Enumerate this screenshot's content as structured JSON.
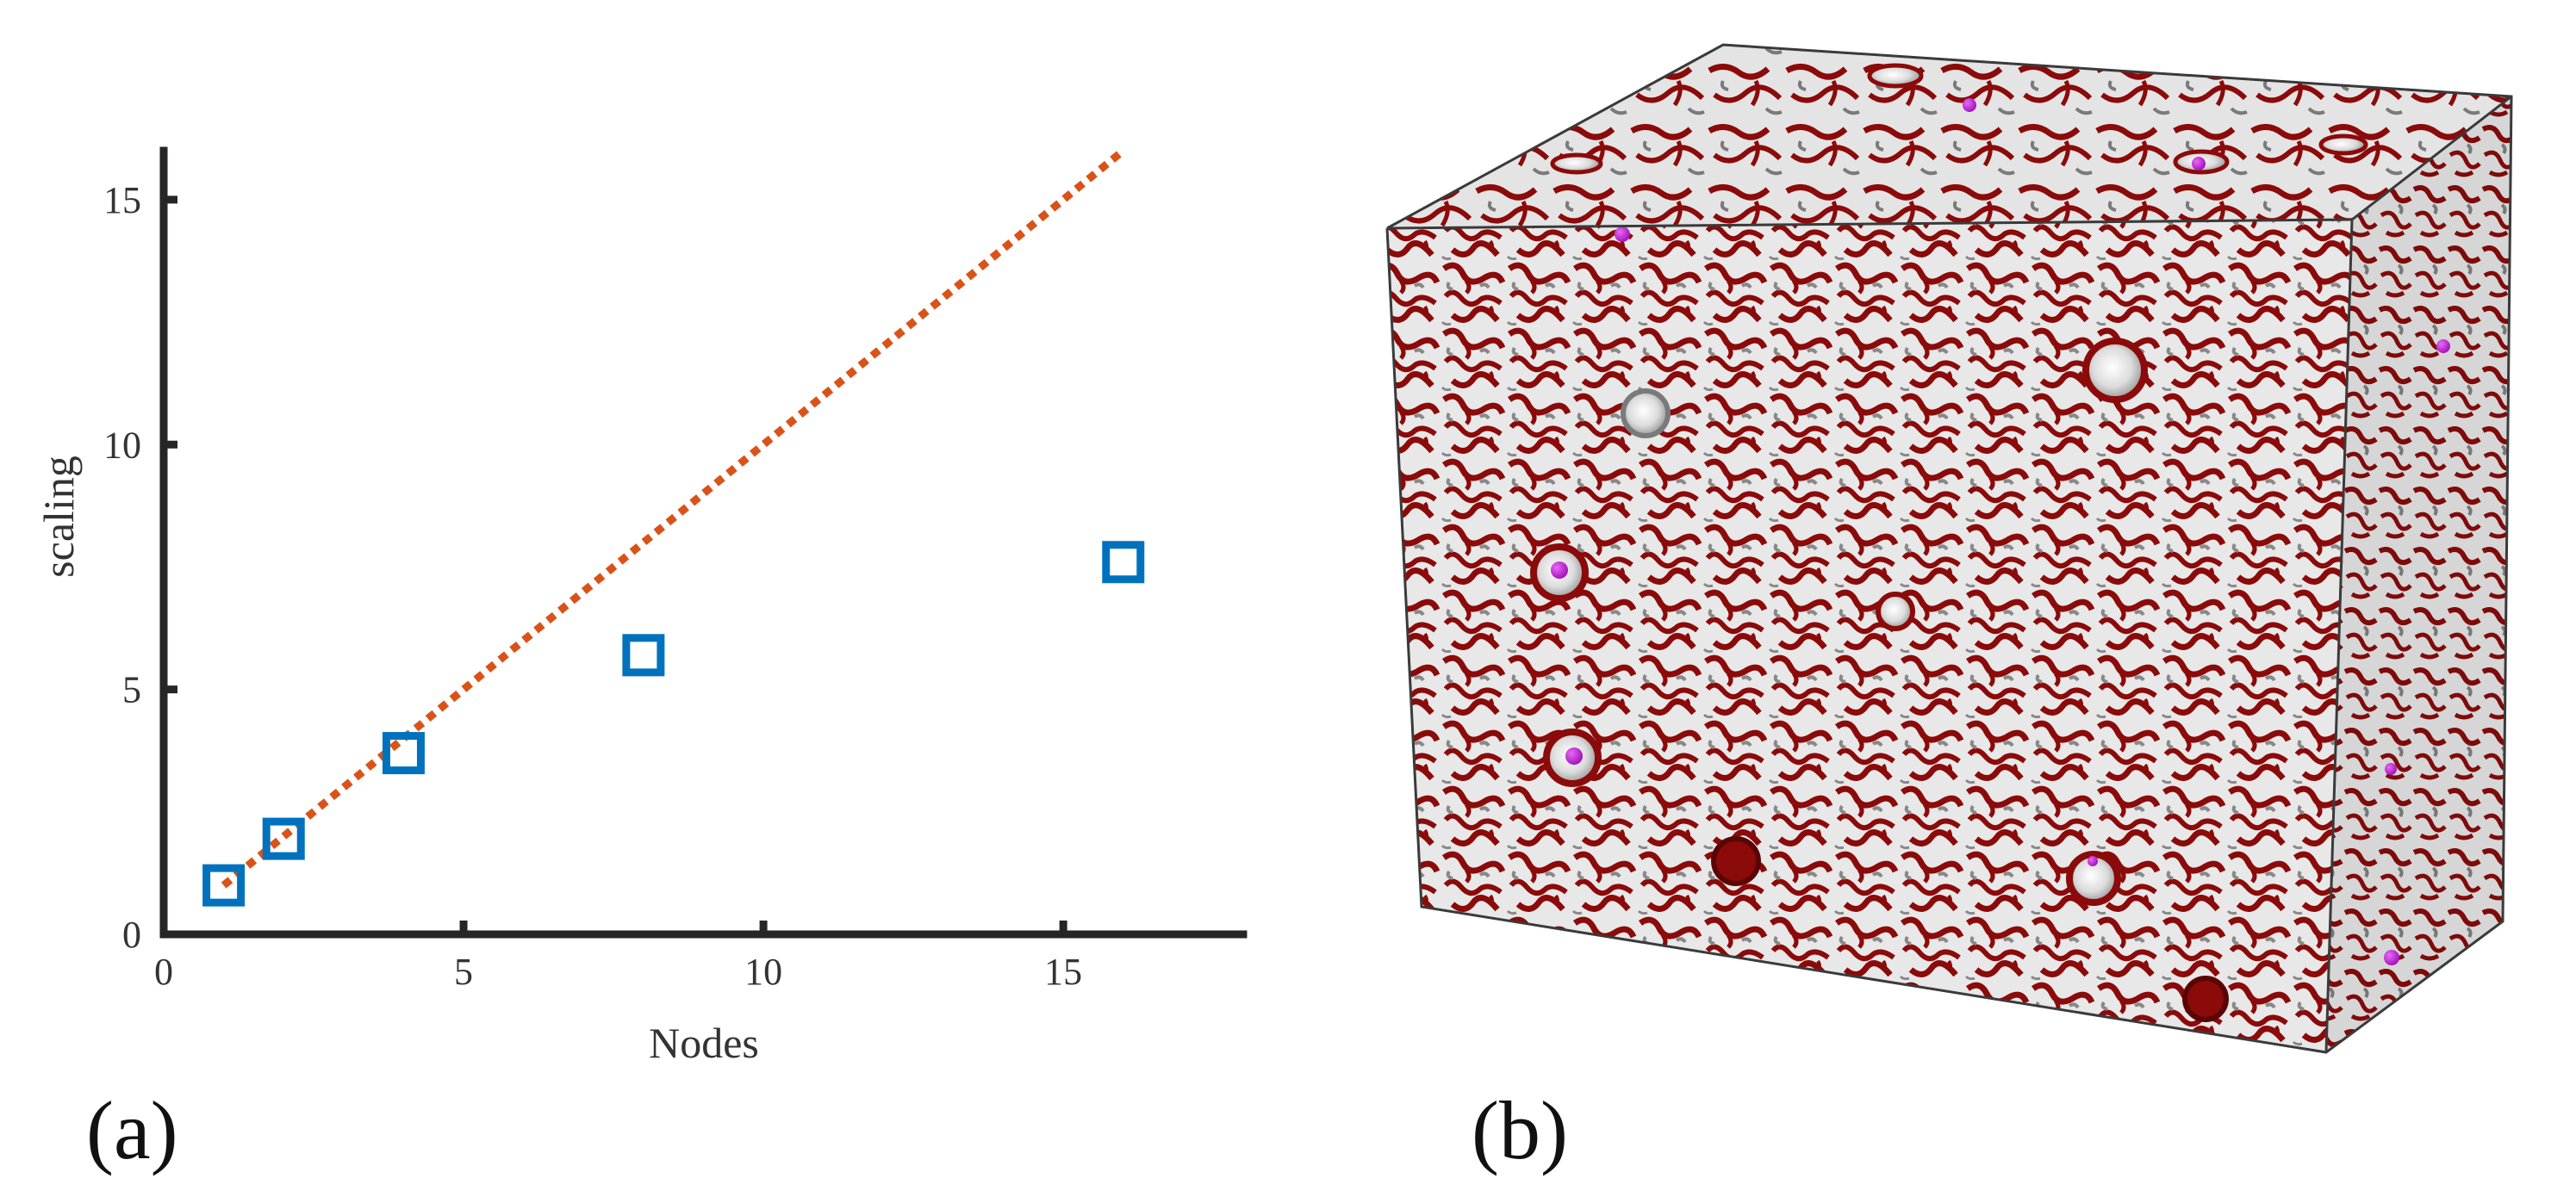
{
  "panels": {
    "a": {
      "label": "(a)"
    },
    "b": {
      "label": "(b)"
    }
  },
  "chart_data": {
    "type": "scatter",
    "title": "",
    "xlabel": "Nodes",
    "ylabel": "scaling",
    "xlim": [
      0,
      18
    ],
    "ylim": [
      0,
      16
    ],
    "xticks": [
      0,
      5,
      10,
      15
    ],
    "yticks": [
      0,
      5,
      10,
      15
    ],
    "grid": false,
    "legend": "none",
    "series": [
      {
        "kind": "markers",
        "marker": "square-open",
        "color": "#0072BD",
        "x": [
          1,
          2,
          4,
          8,
          16
        ],
        "y": [
          1.0,
          1.95,
          3.7,
          5.7,
          7.6
        ]
      },
      {
        "kind": "line",
        "style": "dotted",
        "color": "#D95319",
        "x": [
          1,
          16
        ],
        "y": [
          1,
          16
        ]
      }
    ]
  },
  "render": {
    "colors": {
      "background": "#ffffff",
      "solid": "#e6e6e6",
      "shadow": "#8a8a8a",
      "interface": "#8b0a0a",
      "particle": "#b413c9",
      "frame": "#3a3a3a"
    },
    "particles_visible": 9,
    "pores_visible": 12
  }
}
